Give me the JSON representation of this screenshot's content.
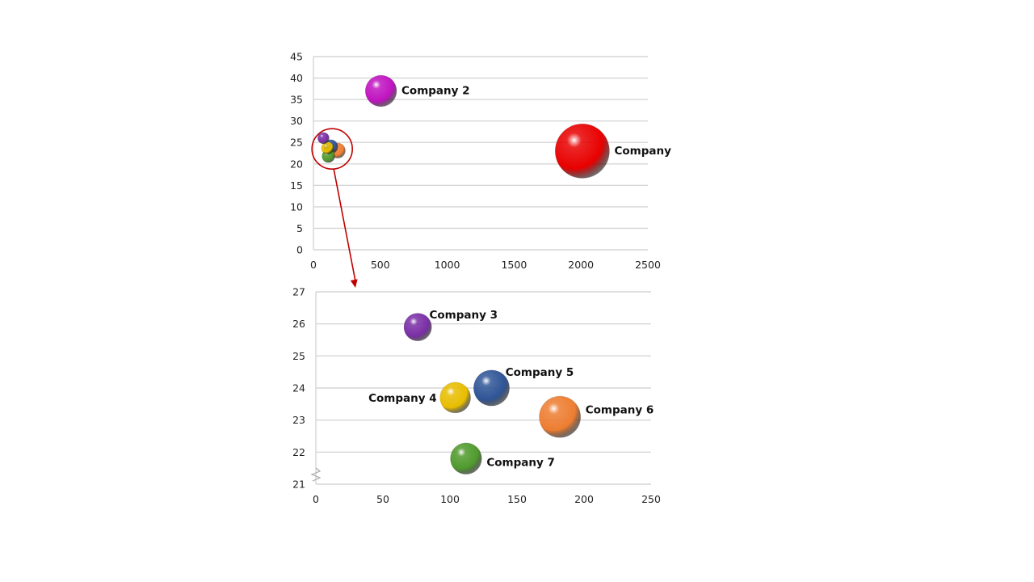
{
  "chart_data": [
    {
      "type": "bubble",
      "xlim": [
        0,
        2500
      ],
      "ylim": [
        0,
        45
      ],
      "x_ticks": [
        "0",
        "500",
        "1000",
        "1500",
        "2000",
        "2500"
      ],
      "y_ticks": [
        "0",
        "5",
        "10",
        "15",
        "20",
        "25",
        "30",
        "35",
        "40",
        "45"
      ],
      "grid": true,
      "points": [
        {
          "label": "Company 2",
          "x": 505,
          "y": 37,
          "size": 3,
          "color": "#c013c0"
        },
        {
          "label": "Company",
          "x": 2010,
          "y": 23,
          "size": 9,
          "color": "#e80000"
        },
        {
          "label": "",
          "x": 75,
          "y": 26,
          "size": 0.4,
          "color": "#7a2ea6"
        },
        {
          "label": "",
          "x": 105,
          "y": 23.7,
          "size": 0.45,
          "color": "#e8bd00"
        },
        {
          "label": "",
          "x": 130,
          "y": 24,
          "size": 0.6,
          "color": "#2f5597"
        },
        {
          "label": "",
          "x": 182,
          "y": 23.1,
          "size": 0.7,
          "color": "#ed7d31"
        },
        {
          "label": "",
          "x": 112,
          "y": 21.8,
          "size": 0.5,
          "color": "#4f9a2c"
        }
      ]
    },
    {
      "type": "bubble",
      "xlim": [
        0,
        250
      ],
      "ylim": [
        21,
        27
      ],
      "axis_break": true,
      "x_ticks": [
        "0",
        "50",
        "100",
        "150",
        "200",
        "250"
      ],
      "y_ticks": [
        "21",
        "22",
        "23",
        "24",
        "25",
        "26",
        "27"
      ],
      "grid": true,
      "points": [
        {
          "label": "Company 3",
          "x": 76,
          "y": 25.9,
          "size": 1.8,
          "color": "#7a2ea6"
        },
        {
          "label": "Company 4",
          "x": 104,
          "y": 23.7,
          "size": 2.2,
          "color": "#e8bd00"
        },
        {
          "label": "Company 5",
          "x": 131,
          "y": 24,
          "size": 3,
          "color": "#2f5597"
        },
        {
          "label": "Company 6",
          "x": 182,
          "y": 23.1,
          "size": 4,
          "color": "#ed7d31"
        },
        {
          "label": "Company 7",
          "x": 112,
          "y": 21.8,
          "size": 2.3,
          "color": "#4f9a2c"
        }
      ]
    }
  ],
  "zoom_callout": {
    "color": "#c00000"
  }
}
